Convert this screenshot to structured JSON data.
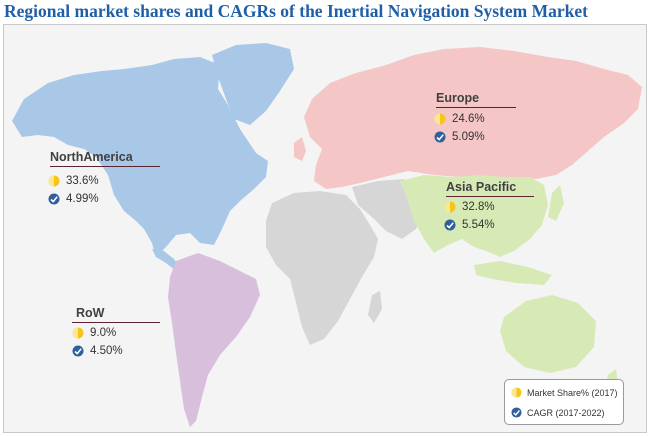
{
  "title": "Regional market shares and CAGRs of the Inertial Navigation System Market",
  "colors": {
    "north_america": "#a9c8e8",
    "europe": "#f5c6c6",
    "asia_pacific": "#d7eab6",
    "row": "#d8c0dd",
    "other_land": "#d6d6d6",
    "share_icon": "#f5c518",
    "cagr_icon": "#2e5f9e",
    "title": "#1f5fa8"
  },
  "regions": [
    {
      "id": "north-america",
      "name": "NorthAmerica",
      "market_share": "33.6%",
      "cagr": "4.99%"
    },
    {
      "id": "europe",
      "name": "Europe",
      "market_share": "24.6%",
      "cagr": "5.09%"
    },
    {
      "id": "asia-pacific",
      "name": "Asia Pacific",
      "market_share": "32.8%",
      "cagr": "5.54%"
    },
    {
      "id": "row",
      "name": "RoW",
      "market_share": "9.0%",
      "cagr": "4.50%"
    }
  ],
  "legend": {
    "share_label": "Market Share% (2017)",
    "cagr_label": "CAGR (2017-2022)",
    "share_icon": "pie-chart-icon",
    "cagr_icon": "trend-check-icon"
  }
}
